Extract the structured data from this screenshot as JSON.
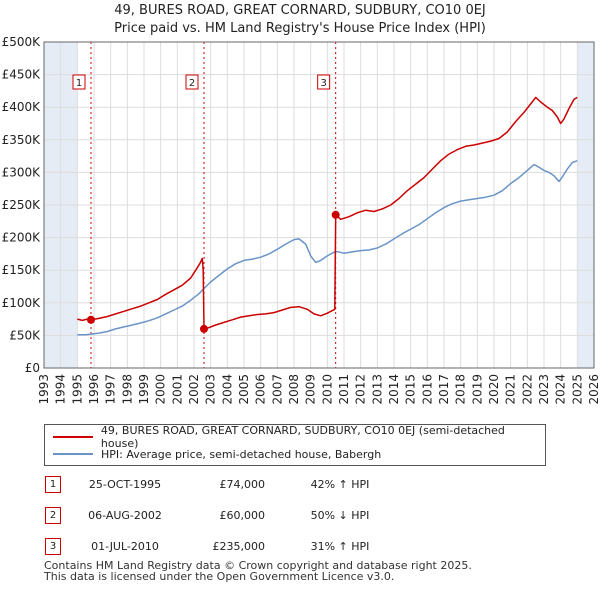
{
  "title": {
    "line1": "49, BURES ROAD, GREAT CORNARD, SUDBURY, CO10 0EJ",
    "line2": "Price paid vs. HM Land Registry's House Price Index (HPI)"
  },
  "legend": {
    "red_label": "49, BURES ROAD, GREAT CORNARD, SUDBURY, CO10 0EJ (semi-detached house)",
    "blue_label": "HPI: Average price, semi-detached house, Babergh"
  },
  "colors": {
    "red": "#cc0000",
    "blue": "#6a94c8",
    "shade": "#e6ecf5",
    "grid": "#dddddd"
  },
  "table": [
    {
      "num": "1",
      "date": "25-OCT-1995",
      "price": "£74,000",
      "hpi": "42% ↑ HPI"
    },
    {
      "num": "2",
      "date": "06-AUG-2002",
      "price": "£60,000",
      "hpi": "50% ↓ HPI"
    },
    {
      "num": "3",
      "date": "01-JUL-2010",
      "price": "£235,000",
      "hpi": "31% ↑ HPI"
    }
  ],
  "footer": {
    "line1": "Contains HM Land Registry data © Crown copyright and database right 2025.",
    "line2": "This data is licensed under the Open Government Licence v3.0."
  },
  "chart_data": {
    "type": "line",
    "xlim": [
      1993,
      2026
    ],
    "ylim": [
      0,
      500000
    ],
    "x_ticks": [
      "1993",
      "1994",
      "1995",
      "1996",
      "1997",
      "1998",
      "1999",
      "2000",
      "2001",
      "2002",
      "2003",
      "2004",
      "2005",
      "2006",
      "2007",
      "2008",
      "2009",
      "2010",
      "2011",
      "2012",
      "2013",
      "2014",
      "2015",
      "2016",
      "2017",
      "2018",
      "2019",
      "2020",
      "2021",
      "2022",
      "2023",
      "2024",
      "2025",
      "2026"
    ],
    "y_ticks": [
      {
        "v": 0,
        "label": "£0"
      },
      {
        "v": 50000,
        "label": "£50K"
      },
      {
        "v": 100000,
        "label": "£100K"
      },
      {
        "v": 150000,
        "label": "£150K"
      },
      {
        "v": 200000,
        "label": "£200K"
      },
      {
        "v": 250000,
        "label": "£250K"
      },
      {
        "v": 300000,
        "label": "£300K"
      },
      {
        "v": 350000,
        "label": "£350K"
      },
      {
        "v": 400000,
        "label": "£400K"
      },
      {
        "v": 450000,
        "label": "£450K"
      },
      {
        "v": 500000,
        "label": "£500K"
      }
    ],
    "shaded_ranges": [
      [
        1993,
        1995.0
      ],
      [
        2025.0,
        2026
      ]
    ],
    "sales": [
      {
        "label": "1",
        "x": 1995.82,
        "y": 74000
      },
      {
        "label": "2",
        "x": 2002.6,
        "y": 60000
      },
      {
        "label": "3",
        "x": 2010.5,
        "y": 235000
      }
    ],
    "series": [
      {
        "name": "49, BURES ROAD, GREAT CORNARD, SUDBURY, CO10 0EJ (semi-detached house)",
        "color": "#cc0000",
        "points": [
          [
            1995.0,
            75000
          ],
          [
            1995.3,
            73000
          ],
          [
            1995.6,
            75000
          ],
          [
            1995.82,
            74000
          ],
          [
            1996.3,
            76000
          ],
          [
            1996.8,
            79000
          ],
          [
            1997.3,
            83000
          ],
          [
            1997.8,
            87000
          ],
          [
            1998.3,
            91000
          ],
          [
            1998.8,
            95000
          ],
          [
            1999.3,
            100000
          ],
          [
            1999.8,
            105000
          ],
          [
            2000.3,
            113000
          ],
          [
            2000.8,
            120000
          ],
          [
            2001.3,
            127000
          ],
          [
            2001.8,
            138000
          ],
          [
            2002.1,
            150000
          ],
          [
            2002.35,
            160000
          ],
          [
            2002.5,
            168000
          ],
          [
            2002.55,
            150000
          ],
          [
            2002.6,
            60000
          ],
          [
            2002.9,
            62000
          ],
          [
            2003.3,
            66000
          ],
          [
            2003.8,
            70000
          ],
          [
            2004.3,
            74000
          ],
          [
            2004.8,
            78000
          ],
          [
            2005.3,
            80000
          ],
          [
            2005.8,
            82000
          ],
          [
            2006.3,
            83000
          ],
          [
            2006.8,
            85000
          ],
          [
            2007.3,
            89000
          ],
          [
            2007.8,
            93000
          ],
          [
            2008.3,
            94000
          ],
          [
            2008.8,
            90000
          ],
          [
            2009.2,
            83000
          ],
          [
            2009.6,
            80000
          ],
          [
            2010.0,
            84000
          ],
          [
            2010.3,
            88000
          ],
          [
            2010.45,
            90000
          ],
          [
            2010.5,
            235000
          ],
          [
            2010.8,
            228000
          ],
          [
            2011.3,
            232000
          ],
          [
            2011.8,
            238000
          ],
          [
            2012.3,
            242000
          ],
          [
            2012.8,
            240000
          ],
          [
            2013.3,
            244000
          ],
          [
            2013.8,
            250000
          ],
          [
            2014.3,
            260000
          ],
          [
            2014.8,
            272000
          ],
          [
            2015.3,
            282000
          ],
          [
            2015.8,
            292000
          ],
          [
            2016.3,
            305000
          ],
          [
            2016.8,
            318000
          ],
          [
            2017.3,
            328000
          ],
          [
            2017.8,
            335000
          ],
          [
            2018.3,
            340000
          ],
          [
            2018.8,
            342000
          ],
          [
            2019.3,
            345000
          ],
          [
            2019.8,
            348000
          ],
          [
            2020.3,
            352000
          ],
          [
            2020.8,
            362000
          ],
          [
            2021.3,
            378000
          ],
          [
            2021.8,
            392000
          ],
          [
            2022.2,
            405000
          ],
          [
            2022.5,
            415000
          ],
          [
            2022.8,
            408000
          ],
          [
            2023.2,
            400000
          ],
          [
            2023.5,
            395000
          ],
          [
            2023.8,
            385000
          ],
          [
            2024.0,
            375000
          ],
          [
            2024.2,
            382000
          ],
          [
            2024.5,
            398000
          ],
          [
            2024.8,
            412000
          ],
          [
            2025.0,
            415000
          ]
        ]
      },
      {
        "name": "HPI: Average price, semi-detached house, Babergh",
        "color": "#6a94c8",
        "points": [
          [
            1995.0,
            51000
          ],
          [
            1995.5,
            51000
          ],
          [
            1995.82,
            52000
          ],
          [
            1996.3,
            53500
          ],
          [
            1996.8,
            56000
          ],
          [
            1997.3,
            60000
          ],
          [
            1997.8,
            63000
          ],
          [
            1998.3,
            66000
          ],
          [
            1998.8,
            69000
          ],
          [
            1999.3,
            72500
          ],
          [
            1999.8,
            77000
          ],
          [
            2000.3,
            83000
          ],
          [
            2000.8,
            89000
          ],
          [
            2001.3,
            95000
          ],
          [
            2001.8,
            104000
          ],
          [
            2002.3,
            114000
          ],
          [
            2002.6,
            122000
          ],
          [
            2003.0,
            132000
          ],
          [
            2003.5,
            142000
          ],
          [
            2004.0,
            152000
          ],
          [
            2004.5,
            160000
          ],
          [
            2005.0,
            165000
          ],
          [
            2005.5,
            167000
          ],
          [
            2006.0,
            170000
          ],
          [
            2006.5,
            175000
          ],
          [
            2007.0,
            182000
          ],
          [
            2007.5,
            190000
          ],
          [
            2008.0,
            197000
          ],
          [
            2008.3,
            198000
          ],
          [
            2008.7,
            190000
          ],
          [
            2009.0,
            172000
          ],
          [
            2009.3,
            162000
          ],
          [
            2009.6,
            165000
          ],
          [
            2010.0,
            172000
          ],
          [
            2010.5,
            179000
          ],
          [
            2011.0,
            176000
          ],
          [
            2011.5,
            178000
          ],
          [
            2012.0,
            180000
          ],
          [
            2012.5,
            181000
          ],
          [
            2013.0,
            184000
          ],
          [
            2013.5,
            190000
          ],
          [
            2014.0,
            198000
          ],
          [
            2014.5,
            206000
          ],
          [
            2015.0,
            213000
          ],
          [
            2015.5,
            220000
          ],
          [
            2016.0,
            229000
          ],
          [
            2016.5,
            238000
          ],
          [
            2017.0,
            246000
          ],
          [
            2017.5,
            252000
          ],
          [
            2018.0,
            256000
          ],
          [
            2018.5,
            258000
          ],
          [
            2019.0,
            260000
          ],
          [
            2019.5,
            262000
          ],
          [
            2020.0,
            265000
          ],
          [
            2020.5,
            272000
          ],
          [
            2021.0,
            283000
          ],
          [
            2021.5,
            292000
          ],
          [
            2022.0,
            303000
          ],
          [
            2022.4,
            312000
          ],
          [
            2022.7,
            308000
          ],
          [
            2023.0,
            303000
          ],
          [
            2023.3,
            300000
          ],
          [
            2023.6,
            295000
          ],
          [
            2023.9,
            286000
          ],
          [
            2024.1,
            293000
          ],
          [
            2024.4,
            305000
          ],
          [
            2024.7,
            315000
          ],
          [
            2025.0,
            318000
          ]
        ]
      }
    ]
  }
}
